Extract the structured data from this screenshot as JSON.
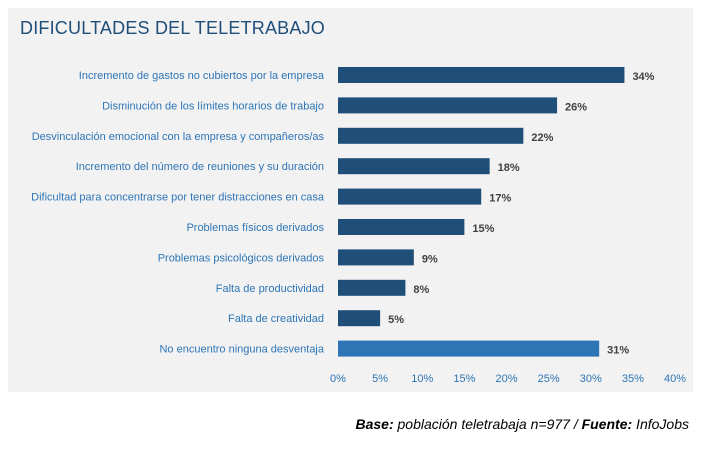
{
  "chart_data": {
    "type": "bar",
    "orientation": "horizontal",
    "title": "DIFICULTADES DEL TELETRABAJO",
    "categories": [
      "Incremento de gastos no cubiertos por la empresa",
      "Disminución de los límites horarios de trabajo",
      "Desvinculación emocional con la empresa y compañeros/as",
      "Incremento del número de reuniones y su duración",
      "Dificultad para concentrarse por tener distracciones en casa",
      "Problemas físicos derivados",
      "Problemas psicológicos derivados",
      "Falta de productividad",
      "Falta de creatividad",
      "No encuentro ninguna desventaja"
    ],
    "values": [
      34,
      26,
      22,
      18,
      17,
      15,
      9,
      8,
      5,
      31
    ],
    "value_labels": [
      "34%",
      "26%",
      "22%",
      "18%",
      "17%",
      "15%",
      "9%",
      "8%",
      "5%",
      "31%"
    ],
    "bar_colors": [
      "#1f4e79",
      "#1f4e79",
      "#1f4e79",
      "#1f4e79",
      "#1f4e79",
      "#1f4e79",
      "#1f4e79",
      "#1f4e79",
      "#1f4e79",
      "#2e75b6"
    ],
    "xlim": [
      0,
      40
    ],
    "xticks": [
      0,
      5,
      10,
      15,
      20,
      25,
      30,
      35,
      40
    ],
    "xtick_labels": [
      "0%",
      "5%",
      "10%",
      "15%",
      "20%",
      "25%",
      "30%",
      "35%",
      "40%"
    ],
    "grid": false,
    "legend": "none"
  },
  "footer": {
    "base_label": "Base:",
    "base_text": " población teletrabaja n=977 / ",
    "source_label": "Fuente:",
    "source_text": " InfoJobs"
  }
}
